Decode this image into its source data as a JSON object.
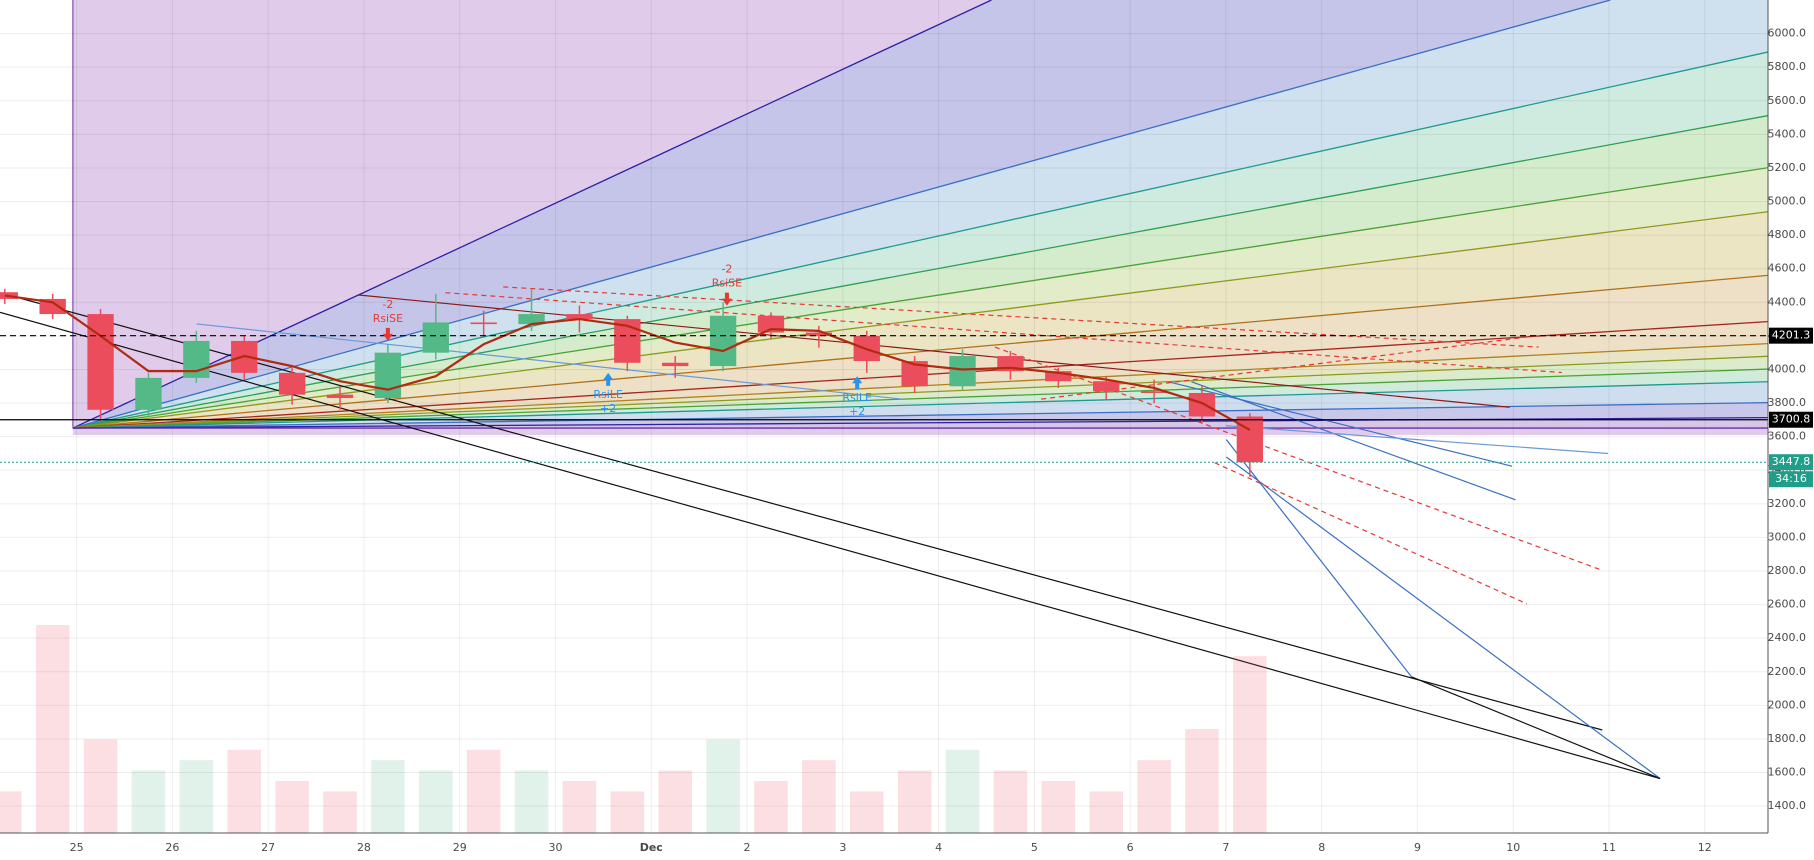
{
  "chart_data": {
    "type": "candlestick",
    "x": [
      -0.75,
      -0.25,
      0.25,
      0.75,
      1.25,
      1.75,
      2.25,
      2.75,
      3.25,
      3.75,
      4.25,
      4.75,
      5.25,
      5.75,
      6.25,
      6.75,
      7.25,
      7.75,
      8.25,
      8.75,
      9.25,
      9.75,
      10.25,
      10.75,
      11.25,
      11.75,
      12.25
    ],
    "open": [
      4460,
      4420,
      4330,
      3760,
      3950,
      4170,
      3980,
      3850,
      3830,
      4100,
      4280,
      4270,
      4330,
      4300,
      4040,
      4020,
      4320,
      4220,
      4200,
      4050,
      3900,
      4080,
      3990,
      3930,
      3870,
      3860,
      3720
    ],
    "high": [
      4480,
      4450,
      4360,
      3980,
      4230,
      4200,
      4010,
      3900,
      4150,
      4450,
      4350,
      4480,
      4380,
      4320,
      4080,
      4400,
      4340,
      4260,
      4230,
      4080,
      4120,
      4110,
      4010,
      3960,
      3940,
      3900,
      3740
    ],
    "low": [
      4390,
      4300,
      3700,
      3720,
      3920,
      3940,
      3790,
      3760,
      3800,
      4060,
      4200,
      4230,
      4220,
      3990,
      3950,
      3990,
      4180,
      4130,
      3980,
      3860,
      3880,
      3940,
      3890,
      3820,
      3800,
      3680,
      3360
    ],
    "close": [
      4420,
      4330,
      3760,
      3950,
      4170,
      3980,
      3850,
      3830,
      4100,
      4280,
      4270,
      4330,
      4300,
      4040,
      4020,
      4320,
      4220,
      4200,
      4050,
      3900,
      4080,
      3990,
      3930,
      3870,
      3860,
      3720,
      3447.8
    ],
    "volume": [
      20,
      100,
      45,
      30,
      35,
      40,
      25,
      20,
      35,
      30,
      40,
      30,
      25,
      20,
      30,
      45,
      25,
      35,
      20,
      30,
      40,
      30,
      25,
      20,
      35,
      50,
      85
    ],
    "ma": [
      4440,
      4400,
      4200,
      3990,
      3990,
      4080,
      4020,
      3930,
      3880,
      3960,
      4150,
      4270,
      4300,
      4260,
      4160,
      4110,
      4240,
      4230,
      4120,
      4030,
      4000,
      4010,
      3980,
      3940,
      3890,
      3800,
      3640
    ],
    "up_color": "#53b987",
    "down_color": "#eb4d5c",
    "ma_color": "#b22a0f",
    "xlim": [
      -0.8,
      17.66
    ],
    "ylim": [
      1240,
      6200
    ],
    "xticks": [
      {
        "value": 0,
        "label": "25"
      },
      {
        "value": 1,
        "label": "26"
      },
      {
        "value": 2,
        "label": "27"
      },
      {
        "value": 3,
        "label": "28"
      },
      {
        "value": 4,
        "label": "29"
      },
      {
        "value": 5,
        "label": "30"
      },
      {
        "value": 6,
        "label": "Dec"
      },
      {
        "value": 7,
        "label": "2"
      },
      {
        "value": 8,
        "label": "3"
      },
      {
        "value": 9,
        "label": "4"
      },
      {
        "value": 10,
        "label": "5"
      },
      {
        "value": 11,
        "label": "6"
      },
      {
        "value": 12,
        "label": "7"
      },
      {
        "value": 13,
        "label": "8"
      },
      {
        "value": 14,
        "label": "9"
      },
      {
        "value": 15,
        "label": "10"
      },
      {
        "value": 16,
        "label": "11"
      },
      {
        "value": 17,
        "label": "12"
      }
    ],
    "yticks": [
      {
        "value": 1400,
        "label": "1400.0"
      },
      {
        "value": 1600,
        "label": "1600.0"
      },
      {
        "value": 1800,
        "label": "1800.0"
      },
      {
        "value": 2000,
        "label": "2000.0"
      },
      {
        "value": 2200,
        "label": "2200.0"
      },
      {
        "value": 2400,
        "label": "2400.0"
      },
      {
        "value": 2600,
        "label": "2600.0"
      },
      {
        "value": 2800,
        "label": "2800.0"
      },
      {
        "value": 3000,
        "label": "3000.0"
      },
      {
        "value": 3200,
        "label": "3200.0"
      },
      {
        "value": 3400,
        "label": "3400.0"
      },
      {
        "value": 3600,
        "label": "3600.0"
      },
      {
        "value": 3800,
        "label": "3800.0"
      },
      {
        "value": 4000,
        "label": "4000.0"
      },
      {
        "value": 4200,
        "label": "4200.0"
      },
      {
        "value": 4400,
        "label": "4400.0"
      },
      {
        "value": 4600,
        "label": "4600.0"
      },
      {
        "value": 4800,
        "label": "4800.0"
      },
      {
        "value": 5000,
        "label": "5000.0"
      },
      {
        "value": 5200,
        "label": "5200.0"
      },
      {
        "value": 5400,
        "label": "5400.0"
      },
      {
        "value": 5600,
        "label": "5600.0"
      },
      {
        "value": 5800,
        "label": "5800.0"
      },
      {
        "value": 6000,
        "label": "6000.0"
      }
    ],
    "grid": true,
    "price_lines": [
      {
        "value": 4201.3,
        "style": "dashed",
        "color": "#000000"
      },
      {
        "value": 3700.8,
        "style": "solid",
        "color": "#000000"
      }
    ],
    "last_price": 3447.8,
    "last_color": "#1f9e89",
    "countdown": "34:16",
    "signals": [
      {
        "label": "RsiSE",
        "qty": -2,
        "x": 3.25,
        "price": 4170,
        "color": "#e53935"
      },
      {
        "label": "RsiLE",
        "qty": {
          "value": 2,
          "label": "+2"
        },
        "x": 5.55,
        "price": 3980,
        "color": "#2196f3"
      },
      {
        "label": "RsiSE",
        "qty": -2,
        "x": 6.79,
        "price": 4380,
        "color": "#e53935"
      },
      {
        "label": "RsiLE",
        "qty": {
          "value": 2,
          "label": "+2"
        },
        "x": 8.15,
        "price": 3960,
        "color": "#2196f3"
      }
    ]
  }
}
